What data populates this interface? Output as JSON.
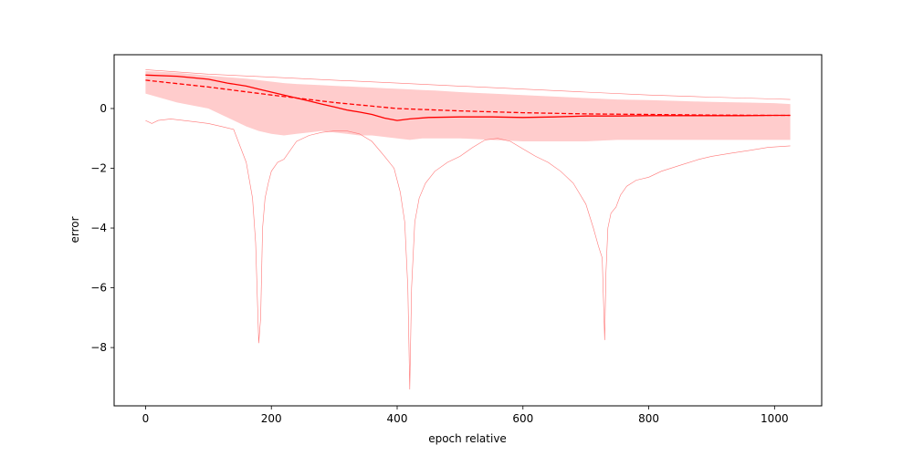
{
  "chart_data": {
    "type": "line",
    "title": "",
    "xlabel": "epoch relative",
    "ylabel": "error",
    "xlim": [
      -50,
      1075
    ],
    "ylim": [
      -9.95,
      1.8
    ],
    "grid": false,
    "xticks": [
      0,
      200,
      400,
      600,
      800,
      1000
    ],
    "yticks": [
      0,
      -2,
      -4,
      -6,
      -8
    ],
    "tick_labels_x": [
      "0",
      "200",
      "400",
      "600",
      "800",
      "1000"
    ],
    "tick_labels_y": [
      "0",
      "−2",
      "−4",
      "−6",
      "−8"
    ],
    "colors": {
      "line": "#ff0000",
      "band": "#ffcccc",
      "thin": "#ff7777"
    },
    "band": {
      "x": [
        0,
        50,
        100,
        130,
        160,
        180,
        200,
        220,
        240,
        260,
        280,
        300,
        320,
        340,
        360,
        380,
        400,
        420,
        440,
        460,
        500,
        550,
        600,
        650,
        700,
        750,
        800,
        850,
        900,
        950,
        1000,
        1025
      ],
      "upper": [
        1.25,
        1.2,
        1.1,
        1.05,
        1.0,
        0.95,
        0.9,
        0.85,
        0.82,
        0.8,
        0.78,
        0.76,
        0.74,
        0.72,
        0.7,
        0.68,
        0.66,
        0.64,
        0.62,
        0.6,
        0.55,
        0.5,
        0.45,
        0.4,
        0.35,
        0.3,
        0.28,
        0.25,
        0.22,
        0.2,
        0.18,
        0.15
      ],
      "lower": [
        0.5,
        0.2,
        0.0,
        -0.3,
        -0.6,
        -0.75,
        -0.85,
        -0.9,
        -0.85,
        -0.8,
        -0.75,
        -0.8,
        -0.85,
        -0.9,
        -0.9,
        -0.95,
        -1.0,
        -1.05,
        -1.0,
        -1.0,
        -1.0,
        -1.05,
        -1.1,
        -1.1,
        -1.1,
        -1.05,
        -1.05,
        -1.05,
        -1.05,
        -1.05,
        -1.05,
        -1.05
      ]
    },
    "series": [
      {
        "style": "solid",
        "x": [
          0,
          50,
          100,
          130,
          160,
          180,
          200,
          220,
          240,
          260,
          280,
          300,
          320,
          340,
          360,
          380,
          400,
          420,
          450,
          500,
          550,
          600,
          650,
          700,
          750,
          800,
          850,
          900,
          950,
          1000,
          1025
        ],
        "y": [
          1.12,
          1.08,
          0.98,
          0.85,
          0.75,
          0.65,
          0.55,
          0.45,
          0.35,
          0.25,
          0.15,
          0.05,
          -0.05,
          -0.12,
          -0.2,
          -0.32,
          -0.4,
          -0.35,
          -0.3,
          -0.28,
          -0.28,
          -0.3,
          -0.28,
          -0.25,
          -0.25,
          -0.24,
          -0.24,
          -0.24,
          -0.24,
          -0.23,
          -0.23
        ]
      },
      {
        "style": "dashed",
        "x": [
          0,
          100,
          200,
          300,
          400,
          500,
          600,
          700,
          800,
          900,
          1000,
          1025
        ],
        "y": [
          0.95,
          0.72,
          0.45,
          0.2,
          0.0,
          -0.08,
          -0.14,
          -0.18,
          -0.2,
          -0.22,
          -0.23,
          -0.23
        ]
      }
    ],
    "envelope": {
      "upper": {
        "x": [
          0,
          100,
          200,
          300,
          400,
          500,
          600,
          700,
          800,
          900,
          1000,
          1025
        ],
        "y": [
          1.3,
          1.15,
          1.05,
          0.95,
          0.85,
          0.75,
          0.65,
          0.55,
          0.45,
          0.38,
          0.32,
          0.3
        ]
      },
      "lower": {
        "x": [
          0,
          10,
          20,
          40,
          60,
          80,
          100,
          120,
          140,
          160,
          170,
          175,
          180,
          183,
          186,
          190,
          195,
          200,
          210,
          220,
          240,
          260,
          280,
          300,
          320,
          340,
          360,
          380,
          395,
          405,
          412,
          417,
          420,
          423,
          428,
          435,
          445,
          460,
          480,
          500,
          520,
          540,
          560,
          580,
          600,
          620,
          640,
          660,
          680,
          700,
          712,
          720,
          726,
          730,
          732,
          735,
          740,
          748,
          755,
          765,
          780,
          800,
          820,
          850,
          880,
          900,
          930,
          960,
          990,
          1025
        ],
        "y": [
          -0.4,
          -0.5,
          -0.4,
          -0.35,
          -0.4,
          -0.45,
          -0.5,
          -0.6,
          -0.7,
          -1.8,
          -3.0,
          -4.5,
          -7.85,
          -7.0,
          -4.0,
          -3.0,
          -2.5,
          -2.1,
          -1.8,
          -1.7,
          -1.1,
          -0.9,
          -0.8,
          -0.75,
          -0.75,
          -0.85,
          -1.1,
          -1.6,
          -2.0,
          -2.8,
          -3.8,
          -6.0,
          -9.4,
          -6.0,
          -3.8,
          -3.0,
          -2.5,
          -2.1,
          -1.8,
          -1.6,
          -1.3,
          -1.05,
          -1.0,
          -1.1,
          -1.35,
          -1.6,
          -1.8,
          -2.1,
          -2.5,
          -3.2,
          -4.0,
          -4.6,
          -5.0,
          -7.75,
          -5.5,
          -4.0,
          -3.5,
          -3.3,
          -2.9,
          -2.6,
          -2.4,
          -2.3,
          -2.1,
          -1.9,
          -1.7,
          -1.6,
          -1.5,
          -1.4,
          -1.3,
          -1.25
        ]
      }
    }
  }
}
